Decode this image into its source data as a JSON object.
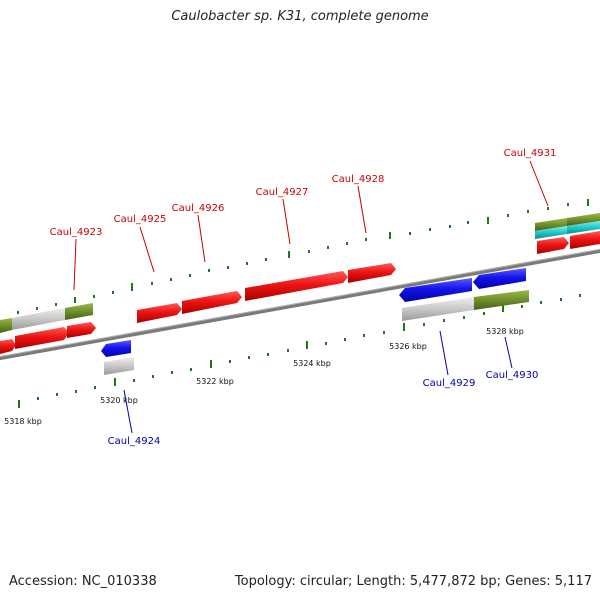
{
  "title": "Caulobacter sp. K31, complete genome",
  "footer": {
    "accession": "Accession: NC_010338",
    "summary": "Topology: circular; Length: 5,477,872 bp; Genes: 5,117"
  },
  "scale_labels": [
    "5318 kbp",
    "5320 kbp",
    "5322 kbp",
    "5324 kbp",
    "5326 kbp",
    "5328 kbp"
  ],
  "gene_labels": {
    "forward": [
      "Caul_4923",
      "Caul_4925",
      "Caul_4926",
      "Caul_4927",
      "Caul_4928",
      "Caul_4931"
    ],
    "reverse": [
      "Caul_4924",
      "Caul_4929",
      "Caul_4930"
    ]
  },
  "colors": {
    "forward_cds": "#e01010",
    "reverse_cds": "#1010dd",
    "forward_label": "#cc0000",
    "reverse_label": "#0000aa",
    "tick": "#1a7a1a",
    "backbone": "#888888",
    "olive_feature": "#6f8f2a",
    "gray_feature": "#c8c8c8",
    "cyan_feature": "#20c8c8"
  }
}
